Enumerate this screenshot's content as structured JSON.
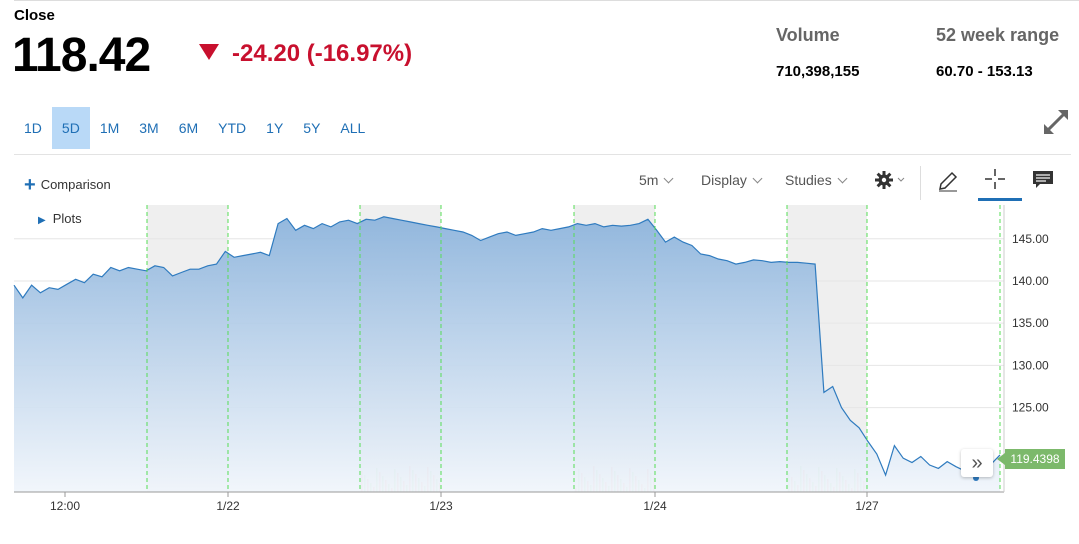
{
  "quote": {
    "close_label": "Close",
    "price": "118.42",
    "change": "-24.20 (-16.97%)",
    "volume_label": "Volume",
    "volume_value": "710,398,155",
    "range_label": "52 week range",
    "range_value": "60.70 - 153.13"
  },
  "range_tabs": [
    "1D",
    "5D",
    "1M",
    "3M",
    "6M",
    "YTD",
    "1Y",
    "5Y",
    "ALL"
  ],
  "active_range": "5D",
  "toolbar": {
    "comparison": "Comparison",
    "plots": "Plots",
    "interval": "5m",
    "display": "Display",
    "studies": "Studies"
  },
  "colors": {
    "line": "#2f7bbf",
    "down": "#c8102e",
    "last_badge": "#7cb96b",
    "active_tab": "#b9d9f7"
  },
  "chart_data": {
    "type": "area",
    "x_tick_labels": [
      "12:00",
      "1/22",
      "1/23",
      "1/24",
      "1/27"
    ],
    "y_ticks": [
      125,
      130,
      135,
      140,
      145
    ],
    "y_tick_labels": [
      "125.00",
      "130.00",
      "135.00",
      "140.00",
      "145.00"
    ],
    "ylim": [
      115,
      149
    ],
    "last_value_label": "119.4398",
    "series": [
      {
        "values": [
          139.5,
          138.0,
          139.5,
          138.6,
          139.2,
          139.0,
          139.6,
          140.2,
          139.8,
          140.8,
          140.5,
          141.6,
          141.2,
          141.6,
          141.4,
          141.2,
          141.8,
          141.6,
          140.6,
          141.0,
          141.4,
          141.4,
          141.8,
          142.0,
          143.5,
          142.8,
          143.0,
          143.2,
          143.4,
          143.0,
          146.8,
          147.4,
          146.0,
          146.6,
          146.2,
          146.8,
          146.4,
          147.0,
          147.2,
          146.8,
          147.3,
          147.2,
          147.6,
          147.4,
          147.2,
          147.0,
          146.8,
          146.6,
          146.4,
          146.2,
          146.0,
          145.8,
          145.4,
          144.8,
          145.2,
          145.6,
          145.8,
          145.4,
          145.6,
          145.8,
          146.2,
          146.0,
          146.2,
          146.4,
          146.8,
          146.6,
          146.8,
          146.4,
          146.6,
          146.5,
          146.6,
          146.8,
          147.3,
          146.0,
          144.6,
          145.2,
          144.6,
          144.2,
          143.2,
          143.0,
          142.6,
          142.4,
          142.0,
          142.2,
          142.5,
          142.4,
          142.2,
          142.3,
          142.2,
          142.2,
          142.1,
          142.0,
          126.8,
          127.5,
          125.0,
          123.5,
          122.6,
          121.0,
          119.5,
          117.0,
          120.5,
          119.0,
          118.5,
          119.2,
          118.2,
          117.8,
          118.6,
          118.0,
          117.5,
          118.4,
          118.2,
          118.3,
          119.4
        ]
      }
    ],
    "volume_panels_shaded": true
  }
}
